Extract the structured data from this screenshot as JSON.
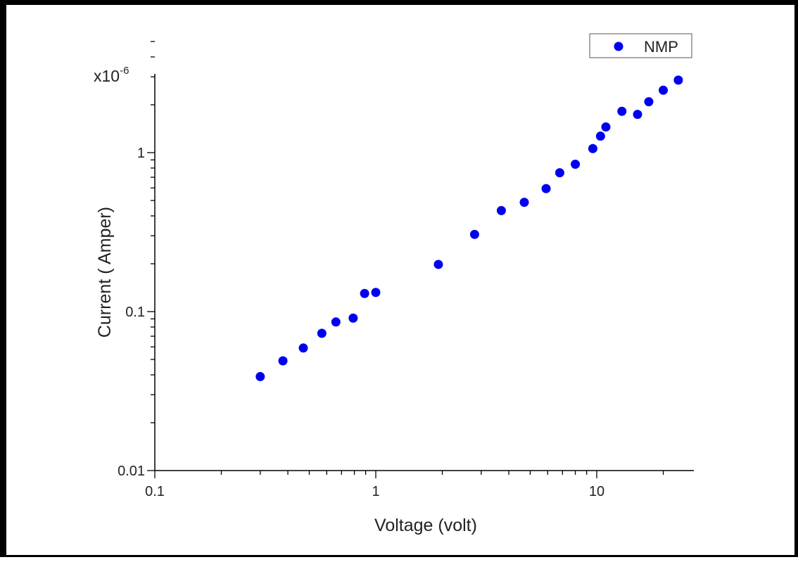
{
  "chart_data": {
    "type": "scatter",
    "xlabel": "Voltage (volt)",
    "ylabel": "Current ( Amper)",
    "y_multiplier_label": "x10",
    "y_multiplier_exponent": "-6",
    "x_scale": "log",
    "y_scale": "log",
    "xlim": [
      0.1,
      27
    ],
    "ylim": [
      0.01,
      5
    ],
    "x_ticks": [
      0.1,
      1,
      10
    ],
    "x_tick_labels": [
      "0.1",
      "1",
      "10"
    ],
    "y_ticks": [
      0.01,
      0.1,
      1
    ],
    "y_tick_labels": [
      "0.01",
      "0.1",
      "1"
    ],
    "grid": false,
    "legend_position": "top-right",
    "colors": {
      "series": "#0000ee",
      "axis": "#000000"
    },
    "series": [
      {
        "name": "NMP",
        "x": [
          0.3,
          0.38,
          0.47,
          0.57,
          0.66,
          0.79,
          0.89,
          1.0,
          1.92,
          2.8,
          3.7,
          4.7,
          5.9,
          6.8,
          8.0,
          9.6,
          10.4,
          11.0,
          13.0,
          15.3,
          17.2,
          20.0,
          23.4
        ],
        "y": [
          0.039,
          0.049,
          0.059,
          0.073,
          0.086,
          0.091,
          0.13,
          0.132,
          0.198,
          0.306,
          0.432,
          0.487,
          0.594,
          0.747,
          0.845,
          1.06,
          1.27,
          1.45,
          1.82,
          1.74,
          2.09,
          2.47,
          2.86
        ]
      }
    ]
  }
}
